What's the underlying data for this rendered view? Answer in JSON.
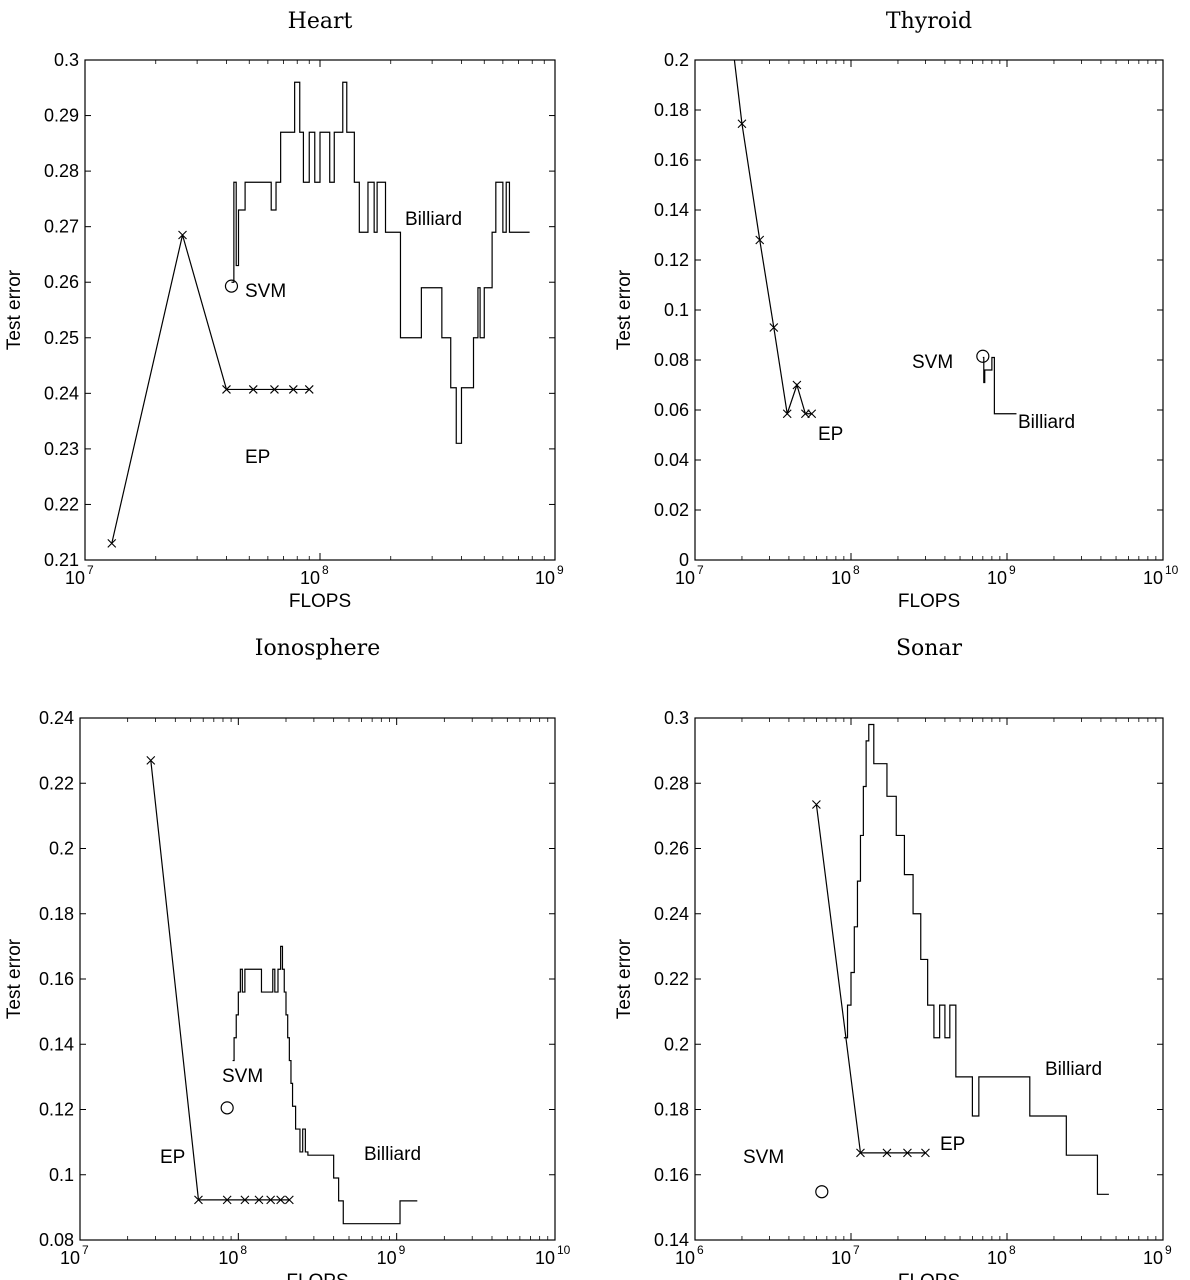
{
  "chart_data": [
    {
      "type": "line",
      "title": "Heart",
      "xlabel": "FLOPS",
      "ylabel": "Test error",
      "xscale": "log",
      "xlim": [
        10000000,
        1000000000
      ],
      "ylim": [
        0.21,
        0.3
      ],
      "xticks": [
        {
          "base": "10",
          "exp": "7"
        },
        {
          "base": "10",
          "exp": "8"
        },
        {
          "base": "10",
          "exp": "9"
        }
      ],
      "yticks": [
        "0.21",
        "0.22",
        "0.23",
        "0.24",
        "0.25",
        "0.26",
        "0.27",
        "0.28",
        "0.29",
        "0.3"
      ],
      "yticklist": [
        0.21,
        0.22,
        0.23,
        0.24,
        0.25,
        0.26,
        0.27,
        0.28,
        0.29,
        0.3
      ],
      "series": [
        {
          "label": "EP",
          "marker": "x",
          "x": [
            13000000,
            26000000,
            40000000,
            52000000,
            64000000,
            77000000,
            90000000
          ],
          "y": [
            0.213,
            0.2685,
            0.2407,
            0.2407,
            0.2407,
            0.2407,
            0.2407
          ]
        },
        {
          "label": "Billiard",
          "marker": "none",
          "step": true,
          "x": [
            42000000,
            43000000,
            44000000,
            45000000,
            48000000,
            52000000,
            60000000,
            62000000,
            65000000,
            68000000,
            75000000,
            78000000,
            82000000,
            85000000,
            90000000,
            95000000,
            100000000,
            103000000,
            110000000,
            115000000,
            125000000,
            130000000,
            140000000,
            147000000,
            160000000,
            170000000,
            175000000,
            190000000,
            200000000,
            220000000,
            270000000,
            300000000,
            330000000,
            360000000,
            380000000,
            400000000,
            450000000,
            470000000,
            480000000,
            500000000,
            540000000,
            560000000,
            600000000,
            620000000,
            640000000,
            660000000,
            780000000
          ],
          "y": [
            0.26,
            0.278,
            0.263,
            0.273,
            0.278,
            0.278,
            0.278,
            0.273,
            0.278,
            0.287,
            0.287,
            0.296,
            0.287,
            0.278,
            0.287,
            0.278,
            0.287,
            0.287,
            0.278,
            0.287,
            0.296,
            0.287,
            0.278,
            0.269,
            0.278,
            0.269,
            0.278,
            0.269,
            0.269,
            0.25,
            0.259,
            0.259,
            0.25,
            0.241,
            0.231,
            0.241,
            0.25,
            0.259,
            0.25,
            0.259,
            0.269,
            0.278,
            0.269,
            0.278,
            0.269,
            0.269,
            0.269
          ]
        },
        {
          "label": "SVM",
          "marker": "o",
          "x": [
            42000000
          ],
          "y": [
            0.2593
          ]
        }
      ]
    },
    {
      "type": "line",
      "title": "Thyroid",
      "xlabel": "FLOPS",
      "ylabel": "Test error",
      "xscale": "log",
      "xlim": [
        10000000,
        10000000000
      ],
      "ylim": [
        0,
        0.2
      ],
      "xticks": [
        {
          "base": "10",
          "exp": "7"
        },
        {
          "base": "10",
          "exp": "8"
        },
        {
          "base": "10",
          "exp": "9"
        },
        {
          "base": "10",
          "exp": "10"
        }
      ],
      "yticks": [
        "0",
        "0.02",
        "0.04",
        "0.06",
        "0.08",
        "0.1",
        "0.12",
        "0.14",
        "0.16",
        "0.18",
        "0.2"
      ],
      "yticklist": [
        0,
        0.02,
        0.04,
        0.06,
        0.08,
        0.1,
        0.12,
        0.14,
        0.16,
        0.18,
        0.2
      ],
      "series": [
        {
          "label": "EP",
          "marker": "x",
          "x": [
            17500000,
            20000000,
            26000000,
            32000000,
            39000000,
            45000000,
            51000000,
            56000000
          ],
          "y": [
            0.205,
            0.1745,
            0.128,
            0.093,
            0.0585,
            0.07,
            0.0585,
            0.0585
          ]
        },
        {
          "label": "Billiard",
          "marker": "none",
          "step": true,
          "x": [
            700000000,
            710000000,
            720000000,
            780000000,
            800000000,
            830000000,
            1150000000
          ],
          "y": [
            0.081,
            0.071,
            0.076,
            0.076,
            0.081,
            0.0585,
            0.0585
          ]
        },
        {
          "label": "SVM",
          "marker": "o",
          "x": [
            700000000
          ],
          "y": [
            0.0815
          ]
        }
      ]
    },
    {
      "type": "line",
      "title": "Ionosphere",
      "xlabel": "FLOPS",
      "ylabel": "Test error",
      "xscale": "log",
      "xlim": [
        10000000,
        10000000000
      ],
      "ylim": [
        0.08,
        0.24
      ],
      "xticks": [
        {
          "base": "10",
          "exp": "7"
        },
        {
          "base": "10",
          "exp": "8"
        },
        {
          "base": "10",
          "exp": "9"
        },
        {
          "base": "10",
          "exp": "10"
        }
      ],
      "yticks": [
        "0.08",
        "0.1",
        "0.12",
        "0.14",
        "0.16",
        "0.18",
        "0.2",
        "0.22",
        "0.24"
      ],
      "yticklist": [
        0.08,
        0.1,
        0.12,
        0.14,
        0.16,
        0.18,
        0.2,
        0.22,
        0.24
      ],
      "series": [
        {
          "label": "EP",
          "marker": "x",
          "x": [
            28000000,
            56000000,
            85000000,
            110000000,
            135000000,
            160000000,
            185000000,
            210000000
          ],
          "y": [
            0.227,
            0.0923,
            0.0923,
            0.0923,
            0.0923,
            0.0923,
            0.0923,
            0.0923
          ]
        },
        {
          "label": "Billiard",
          "marker": "none",
          "step": true,
          "x": [
            92000000,
            94000000,
            97000000,
            100000000,
            103000000,
            106000000,
            110000000,
            140000000,
            165000000,
            170000000,
            178000000,
            185000000,
            190000000,
            195000000,
            200000000,
            205000000,
            210000000,
            215000000,
            220000000,
            230000000,
            245000000,
            255000000,
            265000000,
            275000000,
            290000000,
            400000000,
            430000000,
            460000000,
            1050000000,
            1350000000
          ],
          "y": [
            0.135,
            0.142,
            0.149,
            0.156,
            0.163,
            0.156,
            0.163,
            0.156,
            0.163,
            0.156,
            0.163,
            0.17,
            0.163,
            0.156,
            0.149,
            0.142,
            0.135,
            0.128,
            0.121,
            0.114,
            0.107,
            0.114,
            0.107,
            0.106,
            0.106,
            0.099,
            0.092,
            0.085,
            0.092,
            0.092
          ]
        },
        {
          "label": "SVM",
          "marker": "o",
          "x": [
            85000000
          ],
          "y": [
            0.1205
          ]
        }
      ]
    },
    {
      "type": "line",
      "title": "Sonar",
      "xlabel": "FLOPS",
      "ylabel": "Test error",
      "xscale": "log",
      "xlim": [
        1000000,
        1000000000
      ],
      "ylim": [
        0.14,
        0.3
      ],
      "xticks": [
        {
          "base": "10",
          "exp": "6"
        },
        {
          "base": "10",
          "exp": "7"
        },
        {
          "base": "10",
          "exp": "8"
        },
        {
          "base": "10",
          "exp": "9"
        }
      ],
      "yticks": [
        "0.14",
        "0.16",
        "0.18",
        "0.2",
        "0.22",
        "0.24",
        "0.26",
        "0.28",
        "0.3"
      ],
      "yticklist": [
        0.14,
        0.16,
        0.18,
        0.2,
        0.22,
        0.24,
        0.26,
        0.28,
        0.3
      ],
      "series": [
        {
          "label": "EP",
          "marker": "x",
          "x": [
            6000000,
            11500000,
            17000000,
            23000000,
            30000000
          ],
          "y": [
            0.2735,
            0.1667,
            0.1667,
            0.1667,
            0.1667
          ]
        },
        {
          "label": "Billiard",
          "marker": "none",
          "step": true,
          "x": [
            9000000,
            9500000,
            10000000,
            10500000,
            11000000,
            11500000,
            12000000,
            12500000,
            13000000,
            14000000,
            17000000,
            19500000,
            22000000,
            25000000,
            28000000,
            31000000,
            34000000,
            37000000,
            40000000,
            43000000,
            47000000,
            60000000,
            66000000,
            70000000,
            140000000,
            240000000,
            380000000,
            450000000
          ],
          "y": [
            0.202,
            0.212,
            0.222,
            0.236,
            0.25,
            0.264,
            0.279,
            0.293,
            0.298,
            0.286,
            0.276,
            0.264,
            0.252,
            0.24,
            0.226,
            0.212,
            0.202,
            0.212,
            0.202,
            0.212,
            0.19,
            0.178,
            0.19,
            0.19,
            0.178,
            0.166,
            0.154,
            0.154
          ]
        },
        {
          "label": "SVM",
          "marker": "o",
          "x": [
            6500000
          ],
          "y": [
            0.1548
          ]
        }
      ]
    }
  ]
}
